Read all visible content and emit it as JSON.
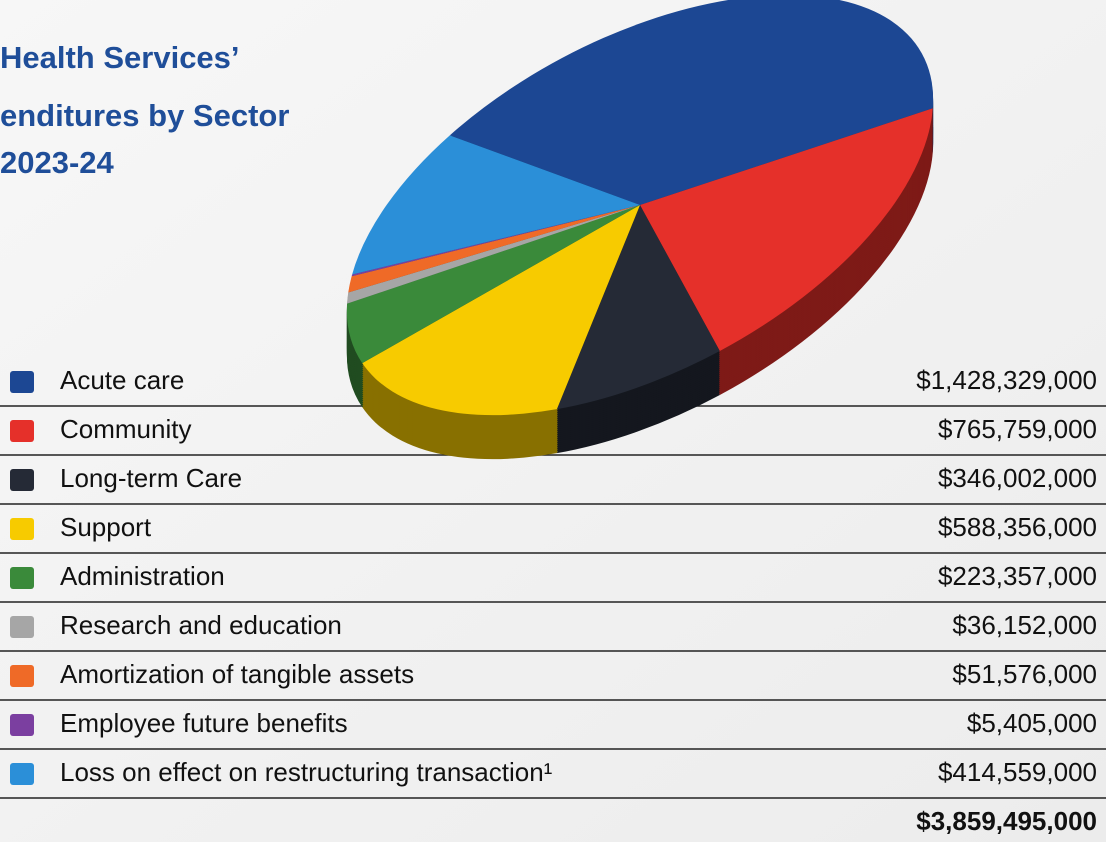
{
  "title_lines": [
    "Health Services’",
    "enditures by Sector",
    "2023-24"
  ],
  "chart_data": {
    "type": "pie",
    "categories": [
      "Acute care",
      "Community",
      "Long-term Care",
      "Support",
      "Administration",
      "Research and education",
      "Amortization of tangible assets",
      "Employee future benefits",
      "Loss on effect on restructuring transaction¹"
    ],
    "values": [
      1428329000,
      765759000,
      346002000,
      588356000,
      223357000,
      36152000,
      51576000,
      5405000,
      414559000
    ],
    "value_labels": [
      "$1,428,329,000",
      "$765,759,000",
      "$346,002,000",
      "$588,356,000",
      "$223,357,000",
      "$36,152,000",
      "$51,576,000",
      "$5,405,000",
      "$414,559,000"
    ],
    "colors": [
      "#1c4793",
      "#e5302a",
      "#252a36",
      "#f7cb00",
      "#3a8a3a",
      "#a6a6a6",
      "#ef6a27",
      "#7b3fa0",
      "#2b8fd8"
    ],
    "total": {
      "value": 3859495000,
      "label": "$3,859,495,000"
    }
  }
}
